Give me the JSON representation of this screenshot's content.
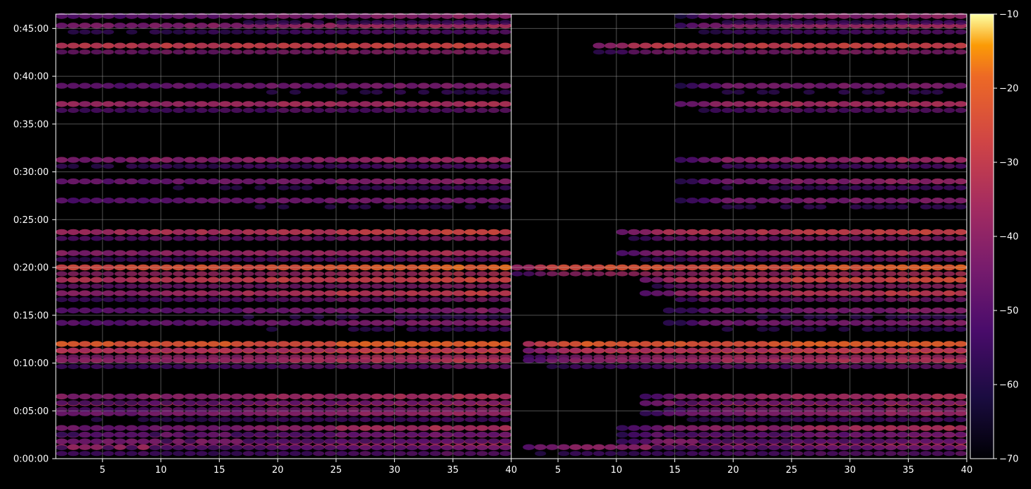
{
  "chart_data": {
    "type": "heatmap",
    "title": "",
    "xlabel": "",
    "ylabel": "",
    "grid": true,
    "background": "#000000",
    "colormap": "inferno",
    "panels": [
      {
        "name": "left",
        "xlim": [
          1,
          40
        ],
        "xticks": [
          5,
          10,
          15,
          20,
          25,
          30,
          35,
          40
        ]
      },
      {
        "name": "right",
        "xlim": [
          1,
          40
        ],
        "xticks": [
          5,
          10,
          15,
          20,
          25,
          30,
          35,
          40
        ]
      }
    ],
    "yaxis": {
      "ylim_seconds": [
        0,
        2790
      ],
      "ticks": [
        {
          "seconds": 0,
          "label": "0:00:00"
        },
        {
          "seconds": 300,
          "label": "0:05:00"
        },
        {
          "seconds": 600,
          "label": "0:10:00"
        },
        {
          "seconds": 900,
          "label": "0:15:00"
        },
        {
          "seconds": 1200,
          "label": "0:20:00"
        },
        {
          "seconds": 1500,
          "label": "0:25:00"
        },
        {
          "seconds": 1800,
          "label": "0:30:00"
        },
        {
          "seconds": 2100,
          "label": "0:35:00"
        },
        {
          "seconds": 2400,
          "label": "0:40:00"
        },
        {
          "seconds": 2700,
          "label": "0:45:00"
        }
      ]
    },
    "colorbar": {
      "range": [
        -70,
        -10
      ],
      "ticks": [
        {
          "value": -10,
          "label": "−10"
        },
        {
          "value": -20,
          "label": "−20"
        },
        {
          "value": -30,
          "label": "−30"
        },
        {
          "value": -40,
          "label": "−40"
        },
        {
          "value": -50,
          "label": "−50"
        },
        {
          "value": -60,
          "label": "−60"
        },
        {
          "value": -70,
          "label": "−70"
        }
      ]
    },
    "bands": [
      {
        "seconds": 72,
        "values": [
          -38,
          -40,
          -38,
          -36,
          -34
        ],
        "right_x0": 2
      },
      {
        "seconds": 108,
        "values": [
          -45,
          -42,
          -40,
          -38,
          -36
        ],
        "right_x0": 10
      },
      {
        "seconds": 150,
        "values": [
          -48,
          -46,
          -42,
          -40,
          -38
        ],
        "right_x0": 10
      },
      {
        "seconds": 192,
        "values": [
          -46,
          -44,
          -40,
          -36,
          -34
        ],
        "right_x0": 10
      },
      {
        "seconds": 285,
        "values": [
          -46,
          -44,
          -42,
          -40,
          -38
        ],
        "right_x0": 12
      },
      {
        "seconds": 348,
        "values": [
          -36,
          -34,
          -32,
          -30,
          -28
        ],
        "right_x0": 12
      },
      {
        "seconds": 390,
        "values": [
          -42,
          -40,
          -38,
          -36,
          -34
        ],
        "right_x0": 12
      },
      {
        "seconds": 618,
        "values": [
          -40,
          -38,
          -36,
          -34,
          -32
        ],
        "right_x0": 2
      },
      {
        "seconds": 678,
        "values": [
          -28,
          -26,
          -24,
          -22,
          -22
        ],
        "right_x0": 2
      },
      {
        "seconds": 720,
        "values": [
          -22,
          -22,
          -24,
          -20,
          -20
        ],
        "right_x0": 2
      },
      {
        "seconds": 852,
        "values": [
          -50,
          -48,
          -46,
          -44,
          -42
        ],
        "right_x0": 14
      },
      {
        "seconds": 930,
        "values": [
          -50,
          -48,
          -46,
          -44,
          -42
        ],
        "right_x0": 14
      },
      {
        "seconds": 1038,
        "values": [
          -40,
          -38,
          -34,
          -32,
          -30
        ],
        "right_x0": 12
      },
      {
        "seconds": 1122,
        "values": [
          -34,
          -32,
          -30,
          -28,
          -26
        ],
        "right_x0": 12
      },
      {
        "seconds": 1200,
        "values": [
          -26,
          -24,
          -24,
          -22,
          -20
        ],
        "right_x0": 1
      },
      {
        "seconds": 1290,
        "values": [
          -42,
          -40,
          -38,
          -36,
          -34
        ],
        "right_x0": 10
      },
      {
        "seconds": 1422,
        "values": [
          -36,
          -34,
          -32,
          -30,
          -28
        ],
        "right_x0": 10
      },
      {
        "seconds": 1620,
        "values": [
          -50,
          -48,
          -46,
          -44,
          -44
        ],
        "right_x0": 15
      },
      {
        "seconds": 1740,
        "values": [
          -48,
          -46,
          -44,
          -42,
          -40
        ],
        "right_x0": 15
      },
      {
        "seconds": 1875,
        "values": [
          -44,
          -42,
          -40,
          -38,
          -36
        ],
        "right_x0": 15
      },
      {
        "seconds": 2226,
        "values": [
          -38,
          -38,
          -36,
          -36,
          -34
        ],
        "right_x0": 15
      },
      {
        "seconds": 2340,
        "values": [
          -50,
          -48,
          -46,
          -44,
          -44
        ],
        "right_x0": 15
      },
      {
        "seconds": 2592,
        "values": [
          -32,
          -30,
          -30,
          -28,
          -28
        ],
        "right_x0": 8
      },
      {
        "seconds": 2718,
        "values": [
          -44,
          -42,
          -40,
          -38,
          -36
        ],
        "right_x0": 15
      },
      {
        "seconds": 2778,
        "values": [
          -50,
          -48,
          -44,
          -42,
          -40
        ],
        "right_x0": 15
      }
    ]
  }
}
